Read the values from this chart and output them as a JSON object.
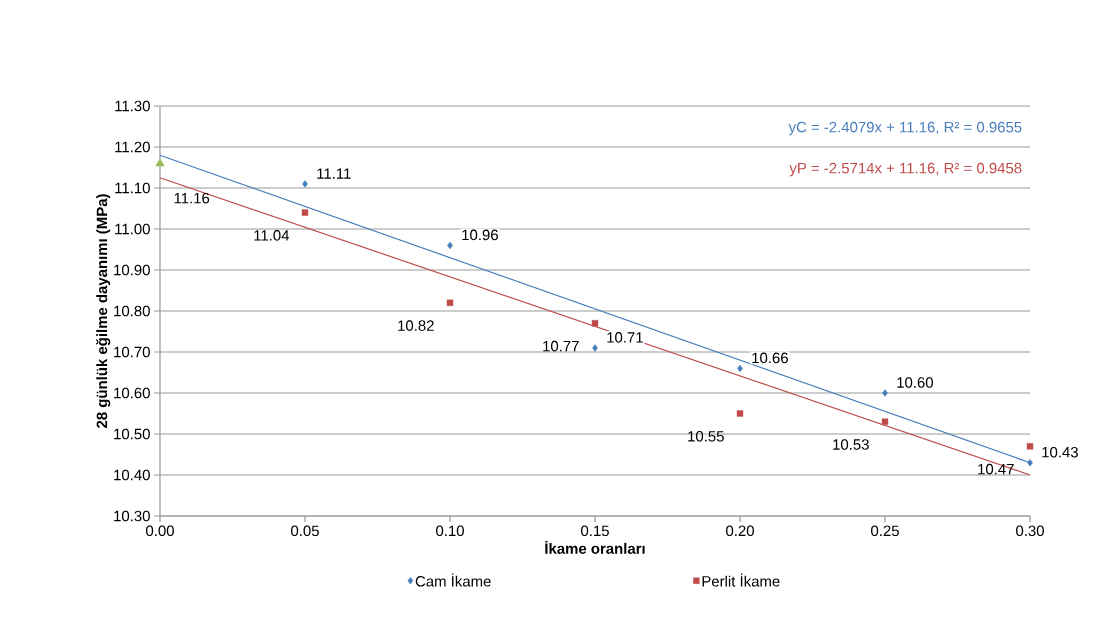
{
  "chart_data": {
    "type": "scatter",
    "xlabel": "İkame oranları",
    "ylabel": "28 günlük eğilme dayanımı (MPa)",
    "xlim": [
      0,
      0.3
    ],
    "ylim": [
      10.3,
      11.3
    ],
    "xticks": [
      {
        "value": 0,
        "label": "0.00"
      },
      {
        "value": 0.05,
        "label": "0.05"
      },
      {
        "value": 0.1,
        "label": "0.10"
      },
      {
        "value": 0.15,
        "label": "0.15"
      },
      {
        "value": 0.2,
        "label": "0.20"
      },
      {
        "value": 0.25,
        "label": "0.25"
      },
      {
        "value": 0.3,
        "label": "0.30"
      }
    ],
    "yticks": [
      {
        "value": 10.3,
        "label": "10.30"
      },
      {
        "value": 10.4,
        "label": "10.40"
      },
      {
        "value": 10.5,
        "label": "10.50"
      },
      {
        "value": 10.6,
        "label": "10.60"
      },
      {
        "value": 10.7,
        "label": "10.70"
      },
      {
        "value": 10.8,
        "label": "10.80"
      },
      {
        "value": 10.9,
        "label": "10.90"
      },
      {
        "value": 11.0,
        "label": "11.00"
      },
      {
        "value": 11.1,
        "label": "11.10"
      },
      {
        "value": 11.2,
        "label": "11.20"
      },
      {
        "value": 11.3,
        "label": "11.30"
      }
    ],
    "grid": "y",
    "legend": "bottom",
    "series": [
      {
        "name": "Cam İkame",
        "color": "#4a7ebb",
        "marker": "diamond",
        "x": [
          0.05,
          0.1,
          0.15,
          0.2,
          0.25,
          0.3
        ],
        "values": [
          11.11,
          10.96,
          10.71,
          10.66,
          10.6,
          10.43
        ],
        "value_labels": [
          "11.11",
          "10.96",
          "10.71",
          "10.66",
          "10.60",
          "10.43"
        ]
      },
      {
        "name": "Perlit İkame",
        "color": "#be4b48",
        "marker": "square",
        "x": [
          0.05,
          0.1,
          0.15,
          0.2,
          0.25,
          0.3
        ],
        "values": [
          11.04,
          10.82,
          10.77,
          10.55,
          10.53,
          10.47
        ],
        "value_labels": [
          "11.04",
          "10.82",
          "10.77",
          "10.55",
          "10.53",
          "10.47"
        ]
      },
      {
        "color": "#9bbb59",
        "marker": "triangle",
        "x": [
          0
        ],
        "values": [
          11.16
        ],
        "value_labels": [
          "11.16"
        ]
      },
      {
        "type": "line",
        "color": "#4a7ebb",
        "x": [
          0,
          0.3
        ],
        "values": [
          11.18,
          10.43
        ]
      },
      {
        "type": "line",
        "color": "#be4b48",
        "x": [
          0,
          0.3
        ],
        "values": [
          11.125,
          10.4
        ]
      }
    ],
    "annotations": [
      "yC = -2.4079x + 11.16,  R² = 0.9655",
      "yP = -2.5714x + 11.16,  R² = 0.9458"
    ]
  }
}
